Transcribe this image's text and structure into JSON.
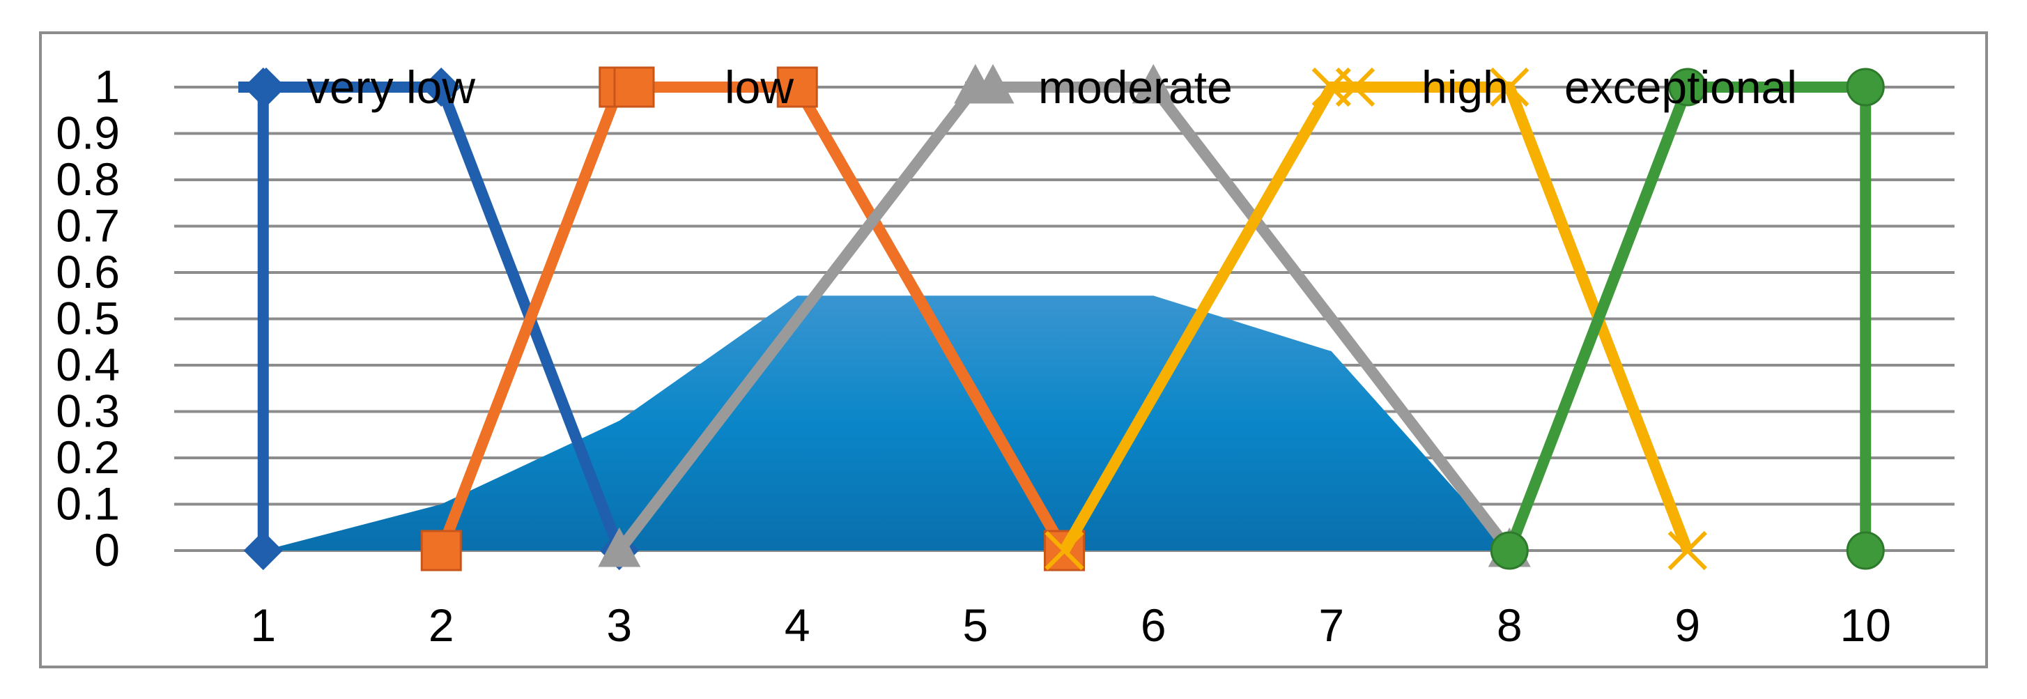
{
  "chart_data": {
    "type": "line",
    "title": "",
    "xlabel": "",
    "ylabel": "",
    "xlim": [
      0.5,
      10.5
    ],
    "ylim": [
      0,
      1
    ],
    "x_ticks": [
      "1",
      "2",
      "3",
      "4",
      "5",
      "6",
      "7",
      "8",
      "9",
      "10"
    ],
    "y_ticks": [
      "0",
      "0.1",
      "0.2",
      "0.3",
      "0.4",
      "0.5",
      "0.6",
      "0.7",
      "0.8",
      "0.9",
      "1"
    ],
    "grid": true,
    "legend_position": "top",
    "area": {
      "color": "#0a7fbf",
      "points": [
        {
          "x": 1,
          "y": 0
        },
        {
          "x": 2,
          "y": 0.1
        },
        {
          "x": 3,
          "y": 0.28
        },
        {
          "x": 4,
          "y": 0.55
        },
        {
          "x": 6,
          "y": 0.55
        },
        {
          "x": 7,
          "y": 0.43
        },
        {
          "x": 8,
          "y": 0
        }
      ]
    },
    "series": [
      {
        "name": "very low",
        "color": "#1f5fad",
        "marker": "diamond",
        "points": [
          {
            "x": 1,
            "y": 0
          },
          {
            "x": 1,
            "y": 1
          },
          {
            "x": 2,
            "y": 1
          },
          {
            "x": 3,
            "y": 0
          }
        ]
      },
      {
        "name": "low",
        "color": "#ef7126",
        "marker": "square",
        "points": [
          {
            "x": 2,
            "y": 0
          },
          {
            "x": 3,
            "y": 1
          },
          {
            "x": 4,
            "y": 1
          },
          {
            "x": 5.5,
            "y": 0
          }
        ]
      },
      {
        "name": "moderate",
        "color": "#9a9a9a",
        "marker": "triangle",
        "points": [
          {
            "x": 3,
            "y": 0
          },
          {
            "x": 5,
            "y": 1
          },
          {
            "x": 6,
            "y": 1
          },
          {
            "x": 8,
            "y": 0
          }
        ]
      },
      {
        "name": "high",
        "color": "#f7b000",
        "marker": "x",
        "points": [
          {
            "x": 5.5,
            "y": 0
          },
          {
            "x": 7,
            "y": 1
          },
          {
            "x": 8,
            "y": 1
          },
          {
            "x": 9,
            "y": 0
          }
        ]
      },
      {
        "name": "exceptional",
        "color": "#3d993a",
        "marker": "circle",
        "points": [
          {
            "x": 8,
            "y": 0
          },
          {
            "x": 9,
            "y": 1
          },
          {
            "x": 10,
            "y": 1
          },
          {
            "x": 10,
            "y": 0
          }
        ]
      }
    ]
  },
  "colors": {
    "grid": "#8c8c8c",
    "frame": "#8c8c8c",
    "background": "#ffffff"
  }
}
